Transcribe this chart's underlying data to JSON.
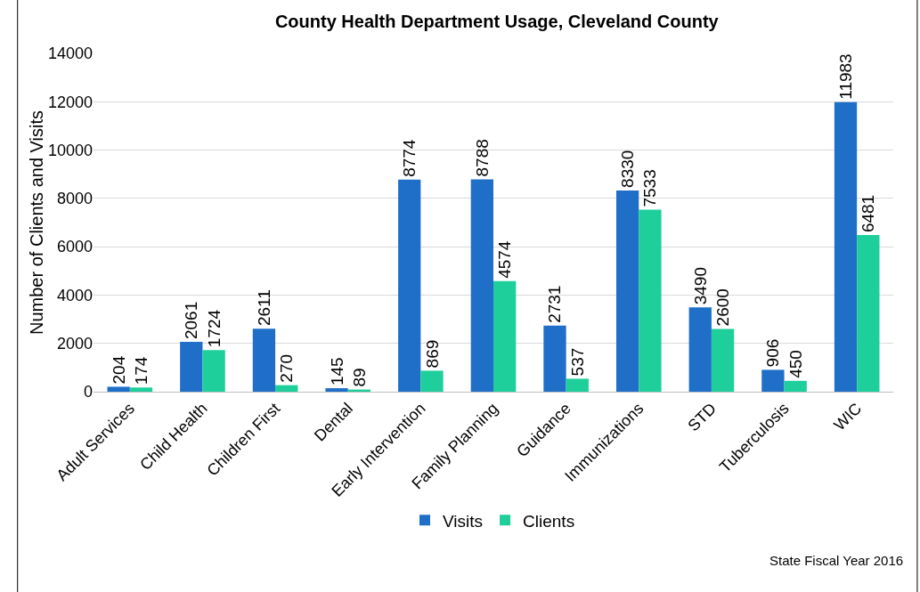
{
  "chart_data": {
    "type": "bar",
    "title": "County Health Department Usage, Cleveland County",
    "ylabel": "Number of Clients and Visits",
    "categories": [
      "Adult Services",
      "Child Health",
      "Children First",
      "Dental",
      "Early Intervention",
      "Family Planning",
      "Guidance",
      "Immunizations",
      "STD",
      "Tuberculosis",
      "WIC"
    ],
    "series": [
      {
        "name": "Visits",
        "color": "#1f6fc9",
        "values": [
          204,
          2061,
          2611,
          145,
          8774,
          8788,
          2731,
          8330,
          3490,
          906,
          11983
        ]
      },
      {
        "name": "Clients",
        "color": "#1fcf9b",
        "values": [
          174,
          1724,
          270,
          89,
          869,
          4574,
          537,
          7533,
          2600,
          450,
          6481
        ]
      }
    ],
    "ylim": [
      0,
      14000
    ],
    "yticks": [
      0,
      2000,
      4000,
      6000,
      8000,
      10000,
      12000,
      14000
    ],
    "grid": "y",
    "legend": "bottom",
    "data_labels": true,
    "annotations": [
      "State Fiscal Year 2016"
    ]
  }
}
